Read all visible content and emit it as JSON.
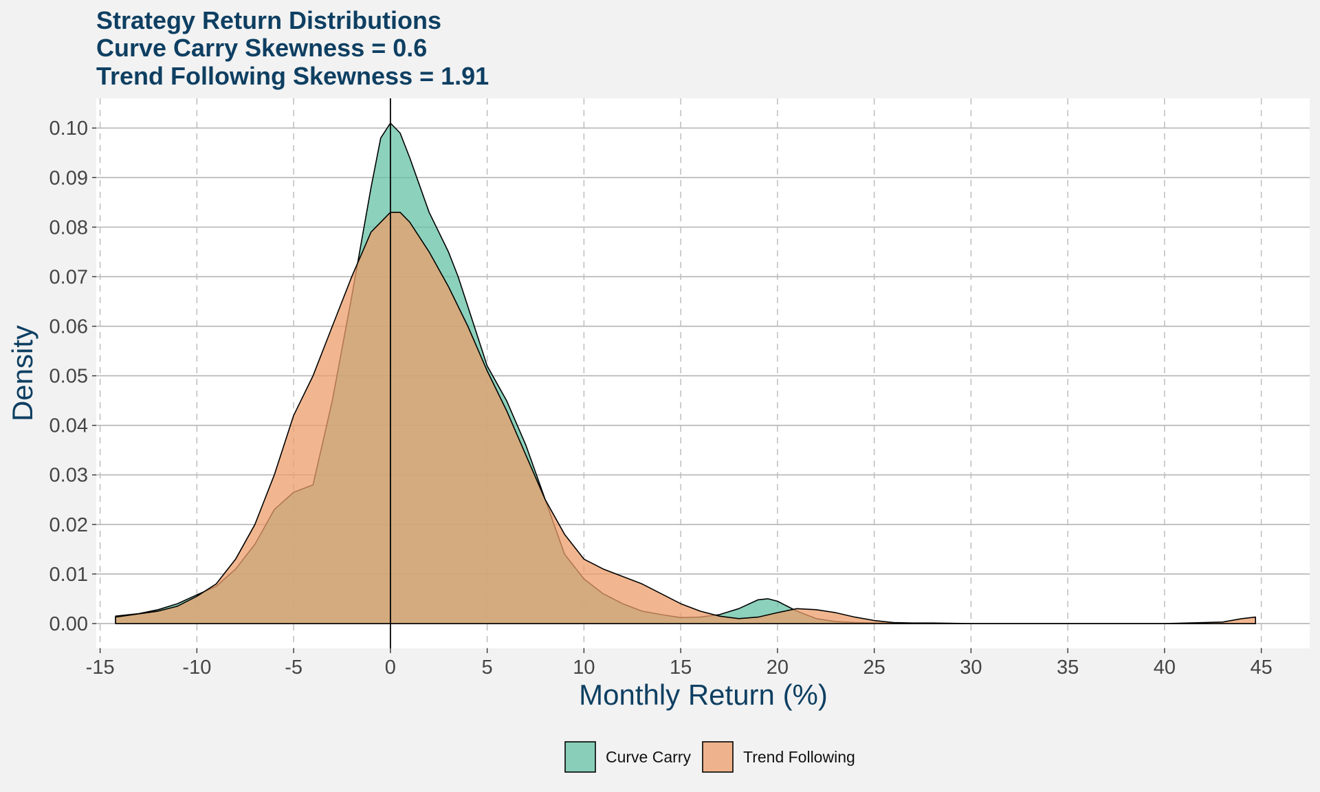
{
  "chart_data": {
    "type": "area",
    "title_lines": [
      "Strategy Return Distributions",
      "Curve Carry Skewness = 0.6",
      "Trend Following Skewness = 1.91"
    ],
    "xlabel": "Monthly Return (%)",
    "ylabel": "Density",
    "xlim": [
      -15.2,
      47.5
    ],
    "ylim": [
      -0.005,
      0.106
    ],
    "x_ticks": [
      -15,
      -10,
      -5,
      0,
      5,
      10,
      15,
      20,
      25,
      30,
      35,
      40,
      45
    ],
    "x_tick_labels": [
      "-15",
      "-10",
      "-5",
      "0",
      "5",
      "10",
      "15",
      "20",
      "25",
      "30",
      "35",
      "40",
      "45"
    ],
    "y_ticks": [
      0,
      0.01,
      0.02,
      0.03,
      0.04,
      0.05,
      0.06,
      0.07,
      0.08,
      0.09,
      0.1
    ],
    "y_tick_labels": [
      "0.00",
      "0.01",
      "0.02",
      "0.03",
      "0.04",
      "0.05",
      "0.06",
      "0.07",
      "0.08",
      "0.09",
      "0.10"
    ],
    "grid": {
      "horizontal": "solid",
      "vertical": "dashed"
    },
    "vline_x": 0,
    "legend_position": "bottom",
    "series": [
      {
        "name": "Curve Carry",
        "color": "#66c2a5",
        "x": [
          -14.2,
          -13,
          -12,
          -11,
          -10,
          -9,
          -8,
          -7,
          -6,
          -5,
          -4,
          -3,
          -2,
          -1,
          -0.5,
          0,
          0.5,
          1,
          2,
          3,
          3.5,
          4,
          5,
          6,
          7,
          8,
          9,
          10,
          11,
          12,
          13,
          14,
          15,
          16,
          17,
          18,
          19,
          19.5,
          20,
          21,
          22,
          23,
          24,
          25,
          26,
          27,
          30,
          35,
          40,
          44.7
        ],
        "y": [
          0.0015,
          0.002,
          0.0028,
          0.004,
          0.0058,
          0.0075,
          0.011,
          0.016,
          0.023,
          0.0265,
          0.028,
          0.045,
          0.066,
          0.088,
          0.098,
          0.101,
          0.099,
          0.094,
          0.083,
          0.075,
          0.07,
          0.064,
          0.052,
          0.045,
          0.036,
          0.025,
          0.014,
          0.009,
          0.006,
          0.004,
          0.0025,
          0.0018,
          0.0012,
          0.0013,
          0.0018,
          0.003,
          0.0048,
          0.005,
          0.0045,
          0.0025,
          0.001,
          0.0004,
          0.0002,
          0.0001,
          0.0001,
          0,
          0,
          0,
          0,
          0
        ]
      },
      {
        "name": "Trend Following",
        "color": "#ec9d6b",
        "x": [
          -14.2,
          -12,
          -11,
          -10,
          -9,
          -8,
          -7,
          -6,
          -5,
          -4,
          -3,
          -2,
          -1,
          0,
          0.5,
          1,
          2,
          3,
          4,
          5,
          6,
          7,
          8,
          9,
          10,
          11,
          12,
          13,
          14,
          15,
          16,
          17,
          18,
          19,
          20,
          21,
          22,
          23,
          24,
          25,
          26,
          27,
          28,
          30,
          35,
          40,
          43,
          44,
          44.7
        ],
        "y": [
          0.0013,
          0.0025,
          0.0035,
          0.0055,
          0.008,
          0.013,
          0.02,
          0.03,
          0.042,
          0.05,
          0.06,
          0.07,
          0.079,
          0.083,
          0.083,
          0.081,
          0.075,
          0.068,
          0.06,
          0.051,
          0.043,
          0.034,
          0.025,
          0.018,
          0.013,
          0.011,
          0.0095,
          0.008,
          0.006,
          0.004,
          0.0025,
          0.0015,
          0.001,
          0.0013,
          0.0022,
          0.003,
          0.0028,
          0.0022,
          0.0013,
          0.0006,
          0.0002,
          0.0001,
          0.0001,
          0,
          0,
          0,
          0.0003,
          0.001,
          0.0013
        ]
      }
    ]
  }
}
